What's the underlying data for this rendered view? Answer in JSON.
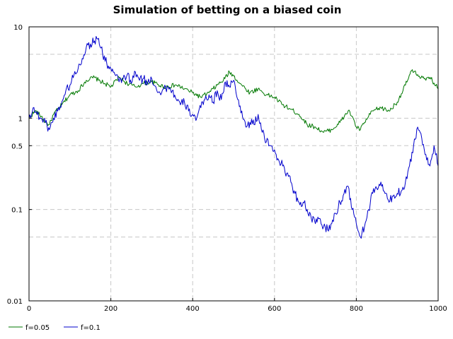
{
  "chart_data": {
    "type": "line",
    "title": "Simulation of betting on a biased coin",
    "xlabel": "",
    "ylabel": "",
    "xlim": [
      0,
      1000
    ],
    "ylim": [
      0.01,
      10
    ],
    "yscale": "log",
    "grid": true,
    "legend_position": "bottom-left",
    "x_ticks": [
      "0",
      "200",
      "400",
      "600",
      "800",
      "1000"
    ],
    "y_ticks": [
      {
        "value": 0.01,
        "label": "0.01"
      },
      {
        "value": 0.1,
        "label": "0.1"
      },
      {
        "value": 0.5,
        "label": "0.5"
      },
      {
        "value": 1,
        "label": "1"
      },
      {
        "value": 10,
        "label": "10"
      }
    ],
    "y_gridlines": [
      0.05,
      0.1,
      0.5,
      1,
      5,
      10
    ],
    "series": [
      {
        "name": "f=0.05",
        "color": "#007800",
        "x": [
          0,
          15,
          30,
          40,
          50,
          60,
          80,
          100,
          120,
          140,
          160,
          170,
          185,
          200,
          220,
          240,
          260,
          280,
          300,
          330,
          360,
          380,
          400,
          420,
          440,
          460,
          475,
          490,
          500,
          520,
          540,
          560,
          580,
          600,
          620,
          640,
          660,
          680,
          700,
          720,
          740,
          760,
          780,
          790,
          800,
          810,
          820,
          840,
          860,
          880,
          900,
          920,
          935,
          950,
          970,
          980,
          1000
        ],
        "y": [
          1,
          1.2,
          1.05,
          0.9,
          0.85,
          1.1,
          1.4,
          1.8,
          2,
          2.6,
          2.8,
          2.6,
          2.4,
          2.2,
          2.8,
          2.4,
          2.2,
          2.4,
          2.5,
          2.2,
          2.3,
          2.1,
          1.9,
          1.7,
          1.9,
          2.3,
          2.6,
          3.2,
          2.9,
          2.3,
          1.9,
          2.1,
          1.8,
          1.7,
          1.4,
          1.25,
          1.1,
          0.85,
          0.8,
          0.7,
          0.75,
          0.9,
          1.2,
          1.05,
          0.8,
          0.75,
          0.9,
          1.2,
          1.3,
          1.2,
          1.5,
          2.3,
          3.3,
          3.0,
          2.6,
          2.8,
          2.1
        ]
      },
      {
        "name": "f=0.1",
        "color": "#0000cc",
        "x": [
          0,
          10,
          20,
          30,
          40,
          50,
          60,
          70,
          80,
          90,
          100,
          110,
          120,
          130,
          140,
          150,
          160,
          170,
          180,
          190,
          200,
          210,
          220,
          230,
          240,
          250,
          260,
          270,
          280,
          290,
          300,
          310,
          320,
          330,
          340,
          350,
          360,
          370,
          380,
          390,
          400,
          410,
          420,
          430,
          440,
          450,
          460,
          470,
          480,
          490,
          500,
          510,
          520,
          530,
          540,
          550,
          560,
          570,
          580,
          590,
          600,
          610,
          620,
          630,
          640,
          650,
          660,
          670,
          680,
          690,
          700,
          710,
          720,
          730,
          740,
          750,
          760,
          770,
          780,
          790,
          800,
          810,
          820,
          830,
          840,
          850,
          860,
          870,
          880,
          890,
          900,
          910,
          920,
          930,
          940,
          950,
          960,
          970,
          980,
          990,
          1000
        ],
        "y": [
          1,
          1.3,
          1.1,
          1.0,
          0.9,
          0.75,
          1.0,
          1.2,
          1.5,
          2.0,
          2.3,
          3.0,
          3.5,
          4.5,
          6.0,
          6.5,
          7.0,
          7.5,
          5.0,
          4.0,
          3.5,
          3.0,
          2.5,
          2.7,
          3.0,
          2.4,
          3.2,
          2.6,
          2.7,
          2.4,
          2.7,
          2.2,
          1.9,
          2.1,
          2.2,
          2.0,
          1.6,
          1.4,
          1.5,
          1.2,
          1.1,
          1.0,
          1.3,
          1.6,
          1.8,
          1.5,
          2.0,
          1.6,
          2.5,
          2.2,
          2.6,
          1.6,
          1.2,
          0.8,
          0.9,
          0.85,
          1.1,
          0.7,
          0.55,
          0.5,
          0.45,
          0.35,
          0.3,
          0.25,
          0.2,
          0.15,
          0.12,
          0.12,
          0.1,
          0.08,
          0.07,
          0.08,
          0.065,
          0.06,
          0.07,
          0.09,
          0.12,
          0.15,
          0.18,
          0.1,
          0.07,
          0.05,
          0.065,
          0.1,
          0.15,
          0.17,
          0.2,
          0.15,
          0.12,
          0.14,
          0.15,
          0.16,
          0.2,
          0.3,
          0.5,
          0.8,
          0.6,
          0.4,
          0.3,
          0.5,
          0.3
        ]
      }
    ]
  }
}
